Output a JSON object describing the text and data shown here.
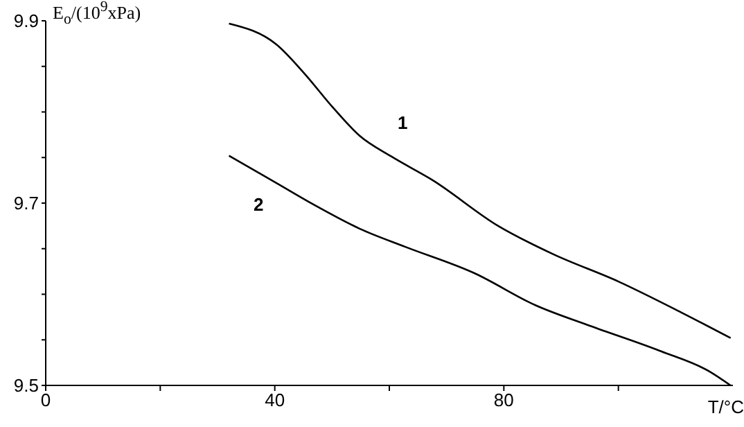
{
  "chart_data": {
    "type": "line",
    "xlabel": "T/°C",
    "ylabel": "E$_{o}$/(10$^{9}$xPa)",
    "xlim": [
      0,
      120
    ],
    "xticks": [
      0,
      {
        "value": 20,
        "label": null
      },
      40,
      {
        "value": 60,
        "label": null
      },
      80,
      {
        "value": 100,
        "label": null
      }
    ],
    "ylim": [
      9.5,
      9.9
    ],
    "yticks": [
      9.5,
      {
        "value": 9.55,
        "label": null
      },
      {
        "value": 9.6,
        "label": null
      },
      {
        "value": 9.65,
        "label": null
      },
      9.7,
      {
        "value": 9.75,
        "label": null
      },
      {
        "value": 9.8,
        "label": null
      },
      {
        "value": 9.85,
        "label": null
      },
      9.9
    ],
    "marker": "none",
    "line_style": "solid",
    "series": [
      {
        "name": "1",
        "color": "#000000",
        "x": [
          32,
          40.3,
          45.2,
          50,
          54.8,
          60.4,
          67.6,
          79,
          88.6,
          100,
          111,
          119.6
        ],
        "values": [
          9.897,
          9.874,
          9.842,
          9.806,
          9.774,
          9.751,
          9.725,
          9.675,
          9.644,
          9.614,
          9.58,
          9.552
        ]
      },
      {
        "name": "2",
        "color": "#000000",
        "x": [
          32,
          40.3,
          46.9,
          54.8,
          62.8,
          74.9,
          85.5,
          95.2,
          107.2,
          116,
          119.6
        ],
        "values": [
          9.752,
          9.722,
          9.698,
          9.672,
          9.652,
          9.623,
          9.588,
          9.565,
          9.538,
          9.515,
          9.5
        ]
      }
    ]
  }
}
